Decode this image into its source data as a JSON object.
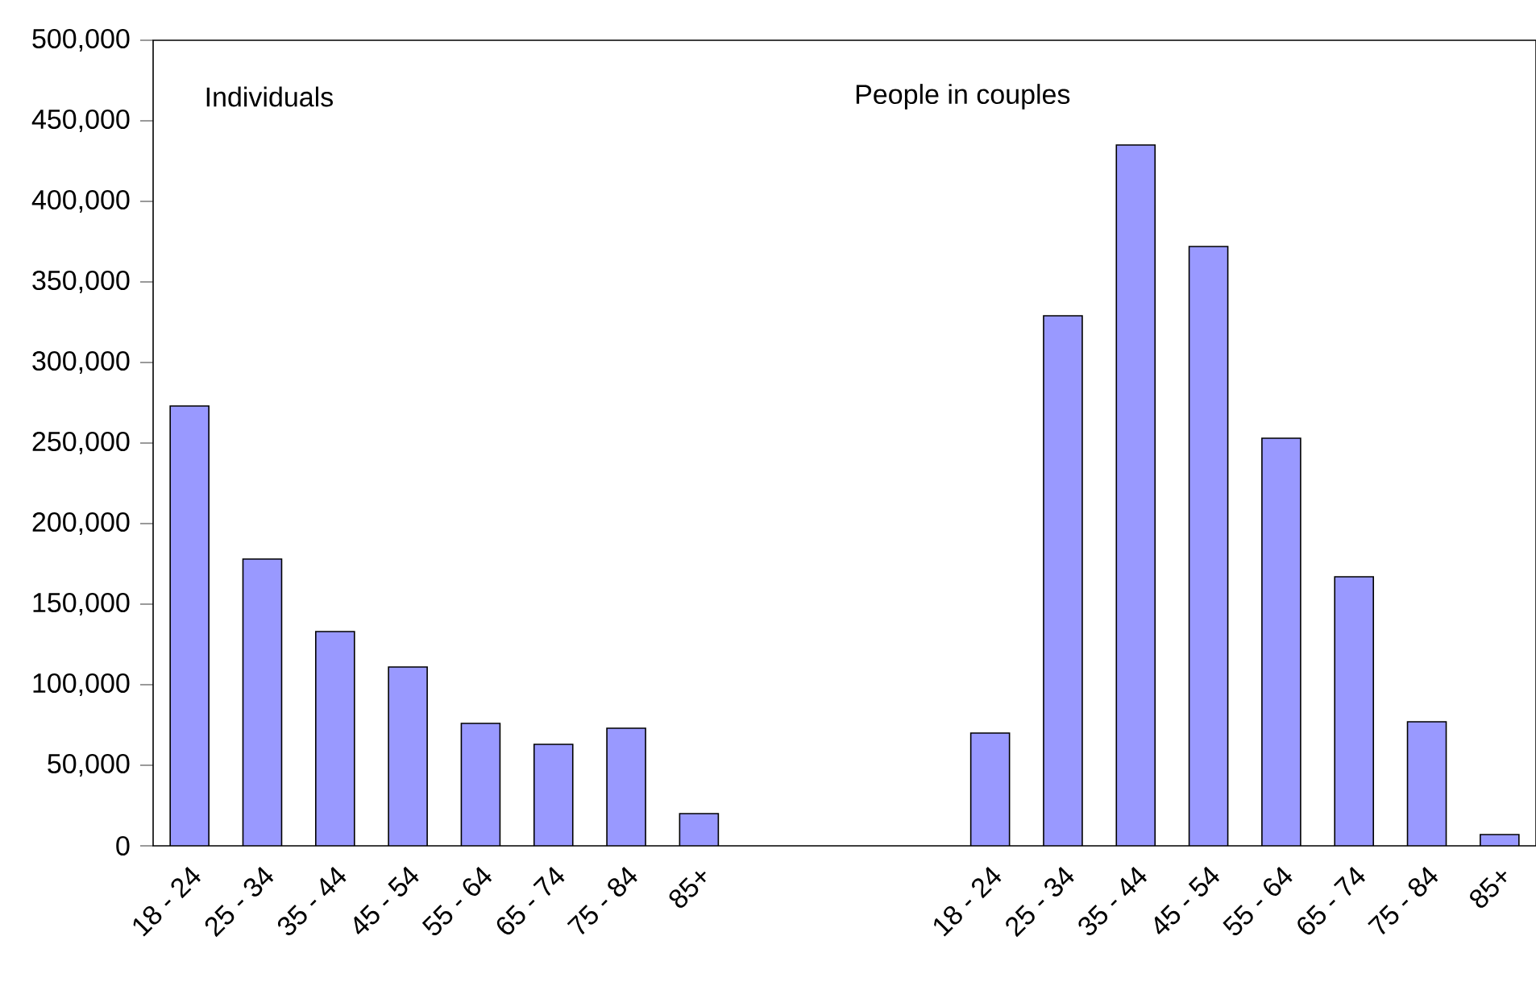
{
  "chart_data": {
    "type": "bar",
    "color": "#9999ff",
    "categories": [
      "18 - 24",
      "25 - 34",
      "35 - 44",
      "45 - 54",
      "55 - 64",
      "65 - 74",
      "75 - 84",
      "85+",
      null,
      null,
      null,
      "18 - 24",
      "25 - 34",
      "35 - 44",
      "45 - 54",
      "55 - 64",
      "65 - 74",
      "75 - 84",
      "85+"
    ],
    "values": [
      273000,
      178000,
      133000,
      111000,
      76000,
      63000,
      73000,
      20000,
      null,
      null,
      null,
      70000,
      329000,
      435000,
      372000,
      253000,
      167000,
      77000,
      7000
    ],
    "ylim": [
      0,
      500000
    ],
    "yticks": [
      {
        "value": 0,
        "label": "0"
      },
      {
        "value": 50000,
        "label": "50,000"
      },
      {
        "value": 100000,
        "label": "100,000"
      },
      {
        "value": 150000,
        "label": "150,000"
      },
      {
        "value": 200000,
        "label": "200,000"
      },
      {
        "value": 250000,
        "label": "250,000"
      },
      {
        "value": 300000,
        "label": "300,000"
      },
      {
        "value": 350000,
        "label": "350,000"
      },
      {
        "value": 400000,
        "label": "400,000"
      },
      {
        "value": 450000,
        "label": "450,000"
      },
      {
        "value": 500000,
        "label": "500,000"
      }
    ],
    "annotations": [
      "Individuals",
      "People in couples"
    ]
  }
}
